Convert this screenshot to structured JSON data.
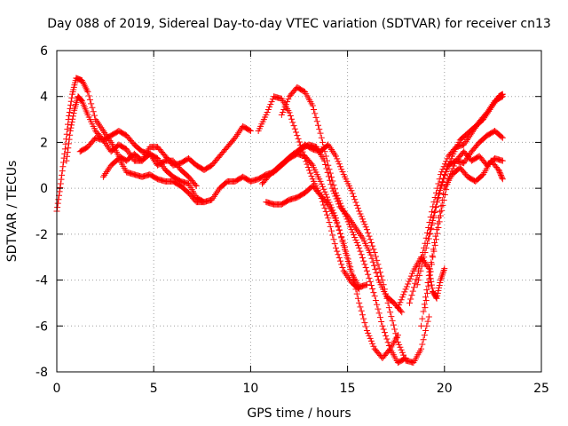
{
  "chart_data": {
    "type": "scatter",
    "title": "Day 088 of 2019, Sidereal Day-to-day VTEC variation (SDTVAR) for receiver cn13",
    "xlabel": "GPS time / hours",
    "ylabel": "SDTVAR / TECUs",
    "xlim": [
      0,
      25
    ],
    "ylim": [
      -8,
      6
    ],
    "xticks": [
      0,
      5,
      10,
      15,
      20,
      25
    ],
    "yticks": [
      -8,
      -6,
      -4,
      -2,
      0,
      2,
      4,
      6
    ],
    "grid": true,
    "marker": "plus",
    "color": "#ff0000",
    "series": [
      {
        "points": [
          [
            0.0,
            -1.0
          ],
          [
            0.2,
            0.2
          ],
          [
            0.4,
            1.5
          ],
          [
            0.6,
            3.0
          ],
          [
            0.8,
            4.1
          ],
          [
            1.0,
            4.8
          ],
          [
            1.3,
            4.7
          ],
          [
            1.6,
            4.2
          ],
          [
            2.0,
            3.0
          ],
          [
            2.4,
            2.5
          ],
          [
            2.8,
            2.0
          ],
          [
            3.2,
            1.4
          ],
          [
            3.6,
            1.2
          ],
          [
            4.0,
            1.5
          ],
          [
            4.4,
            1.2
          ],
          [
            4.8,
            1.5
          ],
          [
            5.2,
            1.3
          ],
          [
            5.6,
            0.8
          ],
          [
            6.0,
            0.5
          ],
          [
            6.4,
            0.3
          ],
          [
            6.8,
            0.2
          ],
          [
            7.2,
            -0.4
          ],
          [
            7.6,
            -0.6
          ],
          [
            8.0,
            -0.5
          ],
          [
            8.4,
            0.0
          ],
          [
            8.8,
            0.3
          ],
          [
            9.2,
            0.3
          ],
          [
            9.6,
            0.5
          ],
          [
            10.0,
            0.3
          ],
          [
            10.4,
            0.4
          ],
          [
            10.8,
            0.6
          ],
          [
            11.2,
            0.7
          ],
          [
            11.6,
            1.0
          ],
          [
            12.0,
            1.3
          ],
          [
            12.4,
            1.5
          ],
          [
            12.8,
            1.4
          ],
          [
            13.2,
            1.0
          ],
          [
            13.6,
            0.3
          ],
          [
            14.0,
            -0.5
          ],
          [
            14.4,
            -1.3
          ],
          [
            14.8,
            -2.5
          ],
          [
            15.2,
            -3.7
          ],
          [
            15.6,
            -4.3
          ],
          [
            16.0,
            -4.2
          ]
        ]
      },
      {
        "points": [
          [
            0.5,
            1.2
          ],
          [
            0.7,
            2.5
          ],
          [
            0.9,
            3.4
          ],
          [
            1.1,
            4.0
          ],
          [
            1.3,
            3.8
          ],
          [
            1.6,
            3.2
          ],
          [
            2.0,
            2.5
          ],
          [
            2.4,
            2.1
          ],
          [
            2.8,
            1.6
          ],
          [
            3.2,
            1.9
          ],
          [
            3.6,
            1.7
          ],
          [
            4.0,
            1.2
          ],
          [
            4.4,
            1.2
          ],
          [
            4.8,
            1.8
          ],
          [
            5.2,
            1.8
          ],
          [
            5.6,
            1.4
          ],
          [
            6.0,
            1.0
          ],
          [
            6.4,
            1.1
          ],
          [
            6.8,
            1.3
          ],
          [
            7.2,
            1.0
          ],
          [
            7.6,
            0.8
          ],
          [
            8.0,
            1.0
          ],
          [
            8.4,
            1.4
          ],
          [
            8.8,
            1.8
          ],
          [
            9.2,
            2.2
          ],
          [
            9.6,
            2.7
          ],
          [
            10.0,
            2.5
          ]
        ]
      },
      {
        "points": [
          [
            1.2,
            1.6
          ],
          [
            1.6,
            1.8
          ],
          [
            2.0,
            2.2
          ],
          [
            2.4,
            2.1
          ],
          [
            2.8,
            2.3
          ],
          [
            3.2,
            2.5
          ],
          [
            3.6,
            2.3
          ],
          [
            4.0,
            1.9
          ],
          [
            4.4,
            1.6
          ],
          [
            4.8,
            1.5
          ],
          [
            5.2,
            1.0
          ],
          [
            5.6,
            1.2
          ],
          [
            6.0,
            1.2
          ],
          [
            6.4,
            0.8
          ],
          [
            6.8,
            0.5
          ],
          [
            7.2,
            0.1
          ]
        ]
      },
      {
        "points": [
          [
            2.4,
            0.5
          ],
          [
            2.8,
            1.0
          ],
          [
            3.2,
            1.3
          ],
          [
            3.6,
            0.7
          ],
          [
            4.0,
            0.6
          ],
          [
            4.4,
            0.5
          ],
          [
            4.8,
            0.6
          ],
          [
            5.2,
            0.4
          ],
          [
            5.6,
            0.3
          ],
          [
            6.0,
            0.3
          ],
          [
            6.4,
            0.1
          ],
          [
            6.8,
            -0.2
          ],
          [
            7.2,
            -0.6
          ],
          [
            7.6,
            -0.6
          ]
        ]
      },
      {
        "points": [
          [
            10.4,
            2.5
          ],
          [
            10.8,
            3.2
          ],
          [
            11.2,
            4.0
          ],
          [
            11.6,
            3.9
          ],
          [
            12.0,
            3.3
          ],
          [
            12.4,
            2.3
          ],
          [
            12.8,
            1.3
          ],
          [
            13.2,
            0.4
          ],
          [
            13.6,
            -0.3
          ],
          [
            14.0,
            -1.3
          ],
          [
            14.4,
            -2.6
          ],
          [
            14.8,
            -3.6
          ],
          [
            15.2,
            -4.1
          ],
          [
            15.6,
            -4.4
          ]
        ]
      },
      {
        "points": [
          [
            11.6,
            3.2
          ],
          [
            12.0,
            4.0
          ],
          [
            12.4,
            4.4
          ],
          [
            12.8,
            4.2
          ],
          [
            13.2,
            3.6
          ],
          [
            13.6,
            2.4
          ],
          [
            14.0,
            1.0
          ],
          [
            14.4,
            -0.2
          ],
          [
            14.8,
            -1.0
          ],
          [
            15.2,
            -1.8
          ],
          [
            15.6,
            -2.6
          ],
          [
            16.0,
            -3.6
          ],
          [
            16.4,
            -4.7
          ],
          [
            16.8,
            -6.0
          ],
          [
            17.2,
            -7.0
          ],
          [
            17.6,
            -7.6
          ],
          [
            18.0,
            -7.4
          ]
        ]
      },
      {
        "points": [
          [
            10.6,
            0.2
          ],
          [
            11.0,
            0.6
          ],
          [
            11.4,
            0.9
          ],
          [
            11.8,
            1.2
          ],
          [
            12.2,
            1.5
          ],
          [
            12.6,
            1.7
          ],
          [
            13.0,
            1.9
          ],
          [
            13.4,
            1.8
          ],
          [
            13.8,
            1.2
          ],
          [
            14.2,
            0.0
          ],
          [
            14.6,
            -0.8
          ],
          [
            15.0,
            -1.2
          ],
          [
            15.4,
            -1.7
          ],
          [
            15.8,
            -2.2
          ],
          [
            16.2,
            -2.9
          ],
          [
            16.6,
            -4.0
          ],
          [
            17.0,
            -4.7
          ],
          [
            17.4,
            -5.0
          ],
          [
            17.8,
            -5.4
          ]
        ]
      },
      {
        "points": [
          [
            10.8,
            -0.6
          ],
          [
            11.2,
            -0.7
          ],
          [
            11.6,
            -0.7
          ],
          [
            12.0,
            -0.5
          ],
          [
            12.4,
            -0.4
          ],
          [
            12.8,
            -0.2
          ],
          [
            13.2,
            0.1
          ],
          [
            13.6,
            -0.3
          ],
          [
            14.0,
            -0.7
          ],
          [
            14.4,
            -1.4
          ],
          [
            14.8,
            -2.4
          ],
          [
            15.2,
            -3.6
          ],
          [
            15.6,
            -5.0
          ],
          [
            16.0,
            -6.2
          ],
          [
            16.4,
            -7.0
          ],
          [
            16.8,
            -7.4
          ],
          [
            17.2,
            -7.0
          ],
          [
            17.6,
            -6.4
          ]
        ]
      },
      {
        "points": [
          [
            12.4,
            1.6
          ],
          [
            12.8,
            1.9
          ],
          [
            13.2,
            1.7
          ],
          [
            13.6,
            1.6
          ],
          [
            14.0,
            1.9
          ],
          [
            14.4,
            1.4
          ],
          [
            14.8,
            0.6
          ],
          [
            15.2,
            -0.1
          ],
          [
            15.6,
            -1.0
          ],
          [
            16.0,
            -1.8
          ],
          [
            16.4,
            -2.8
          ],
          [
            16.8,
            -4.0
          ],
          [
            17.2,
            -5.4
          ],
          [
            17.6,
            -6.7
          ],
          [
            18.0,
            -7.5
          ],
          [
            18.4,
            -7.6
          ],
          [
            18.8,
            -7.0
          ],
          [
            19.2,
            -5.6
          ]
        ]
      },
      {
        "points": [
          [
            17.6,
            -5.2
          ],
          [
            18.0,
            -4.4
          ],
          [
            18.4,
            -3.6
          ],
          [
            18.8,
            -3.0
          ],
          [
            19.2,
            -3.5
          ],
          [
            19.4,
            -4.5
          ],
          [
            19.6,
            -4.8
          ],
          [
            19.8,
            -4.0
          ],
          [
            20.0,
            -3.5
          ]
        ]
      },
      {
        "points": [
          [
            18.2,
            -5.0
          ],
          [
            18.6,
            -3.8
          ],
          [
            19.0,
            -2.4
          ],
          [
            19.4,
            -0.8
          ],
          [
            19.8,
            0.6
          ],
          [
            20.2,
            1.4
          ],
          [
            20.6,
            1.8
          ],
          [
            21.0,
            1.9
          ],
          [
            21.4,
            2.4
          ],
          [
            21.8,
            2.9
          ],
          [
            22.2,
            3.3
          ],
          [
            22.6,
            3.8
          ],
          [
            23.0,
            4.0
          ]
        ]
      },
      {
        "points": [
          [
            18.6,
            -4.2
          ],
          [
            19.0,
            -2.8
          ],
          [
            19.4,
            -1.4
          ],
          [
            19.8,
            0.0
          ],
          [
            20.2,
            1.0
          ],
          [
            20.6,
            1.2
          ],
          [
            21.0,
            1.1
          ],
          [
            21.4,
            1.6
          ],
          [
            21.8,
            2.0
          ],
          [
            22.2,
            2.3
          ],
          [
            22.6,
            2.5
          ],
          [
            23.0,
            2.2
          ]
        ]
      },
      {
        "points": [
          [
            18.8,
            -6.0
          ],
          [
            19.2,
            -3.8
          ],
          [
            19.6,
            -1.8
          ],
          [
            20.0,
            0.0
          ],
          [
            20.4,
            0.6
          ],
          [
            20.8,
            0.9
          ],
          [
            21.2,
            0.5
          ],
          [
            21.6,
            0.3
          ],
          [
            22.0,
            0.6
          ],
          [
            22.4,
            1.2
          ],
          [
            22.8,
            0.8
          ],
          [
            23.0,
            0.4
          ]
        ]
      },
      {
        "points": [
          [
            19.0,
            -5.2
          ],
          [
            19.4,
            -3.0
          ],
          [
            19.8,
            -1.2
          ],
          [
            20.2,
            0.4
          ],
          [
            20.6,
            1.2
          ],
          [
            21.0,
            1.6
          ],
          [
            21.4,
            1.2
          ],
          [
            21.8,
            1.4
          ],
          [
            22.2,
            1.0
          ],
          [
            22.6,
            1.3
          ],
          [
            23.0,
            1.2
          ]
        ]
      },
      {
        "points": [
          [
            19.2,
            -2.2
          ],
          [
            19.6,
            -0.6
          ],
          [
            20.0,
            0.6
          ],
          [
            20.4,
            1.4
          ],
          [
            20.8,
            2.1
          ],
          [
            21.2,
            2.4
          ],
          [
            21.6,
            2.7
          ],
          [
            22.0,
            3.0
          ],
          [
            22.4,
            3.5
          ],
          [
            22.8,
            4.0
          ],
          [
            23.0,
            4.1
          ]
        ]
      }
    ]
  }
}
